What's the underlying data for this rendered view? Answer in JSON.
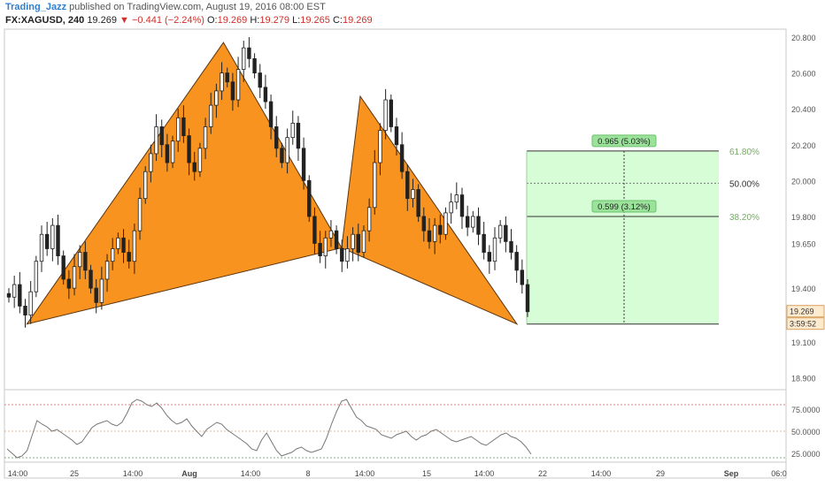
{
  "header": {
    "author": "Trading_Jazz",
    "published": "published on TradingView.com, August 19, 2016 08:00 EST",
    "symbol": "FX:XAGUSD, 240",
    "last": "19.269",
    "change": "−0.441 (−2.24%)",
    "o_label": "O:",
    "o_value": "19.269",
    "h_label": "H:",
    "h_value": "19.279",
    "l_label": "L:",
    "l_value": "19.265",
    "c_label": "C:",
    "c_value": "19.269"
  },
  "colors": {
    "pattern_fill": "#f7931e",
    "pattern_stroke": "#5a3510",
    "target_zone": "#d6fdd6",
    "label_box": "#9be39b",
    "up_candle": "#ffffff",
    "down_candle": "#222222",
    "oscillator_line": "#777777",
    "price_tag": "#fdebd0",
    "level_label": "#7aa86a"
  },
  "chart_data": [
    {
      "type": "line",
      "title": "",
      "ylim": [
        18.88,
        20.85
      ],
      "price_axis": [
        "20.800",
        "20.600",
        "20.400",
        "20.200",
        "20.000",
        "19.800",
        "19.650",
        "19.400",
        "19.100",
        "18.900"
      ],
      "price_axis_values": [
        20.8,
        20.6,
        20.4,
        20.2,
        20.0,
        19.8,
        19.65,
        19.4,
        19.1,
        18.9
      ],
      "time_axis": [
        "14:00",
        "25",
        "14:00",
        "Aug",
        "14:00",
        "8",
        "14:00",
        "15",
        "14:00",
        "22",
        "14:00",
        "29",
        "Sep",
        "06:0"
      ],
      "last_price_tag": "19.269",
      "countdown_tag": "3:59:52",
      "price_series": [
        19.35,
        19.42,
        19.3,
        19.25,
        19.38,
        19.55,
        19.7,
        19.62,
        19.75,
        19.58,
        19.45,
        19.4,
        19.52,
        19.6,
        19.5,
        19.4,
        19.32,
        19.45,
        19.55,
        19.62,
        19.68,
        19.6,
        19.55,
        19.72,
        19.9,
        20.05,
        20.15,
        20.3,
        20.2,
        20.1,
        20.22,
        20.35,
        20.25,
        20.1,
        20.05,
        20.18,
        20.3,
        20.42,
        20.5,
        20.6,
        20.55,
        20.45,
        20.62,
        20.74,
        20.68,
        20.6,
        20.52,
        20.44,
        20.3,
        20.18,
        20.1,
        20.24,
        20.32,
        20.18,
        20.0,
        19.8,
        19.65,
        19.58,
        19.68,
        19.72,
        19.62,
        19.55,
        19.62,
        19.7,
        19.6,
        19.72,
        19.85,
        20.1,
        20.28,
        20.45,
        20.3,
        20.2,
        20.05,
        19.9,
        19.95,
        19.8,
        19.72,
        19.66,
        19.75,
        19.7,
        19.82,
        19.88,
        19.92,
        19.8,
        19.74,
        19.8,
        19.7,
        19.6,
        19.55,
        19.68,
        19.75,
        19.66,
        19.6,
        19.5,
        19.42,
        19.269
      ],
      "harmonic_pattern": [
        {
          "x": "Jul 20",
          "y": 19.2
        },
        {
          "x": "Aug 3",
          "y": 20.77
        },
        {
          "x": "Aug 10",
          "y": 19.625
        },
        {
          "x": "Aug 11",
          "y": 20.47
        },
        {
          "x": "Aug 19",
          "y": 19.2
        }
      ],
      "target_projection": [
        {
          "label": "0.965 (5.03%)",
          "level": "61.80%",
          "price": 20.165
        },
        {
          "label": "",
          "level": "50.00%",
          "price": 19.985
        },
        {
          "label": "0.599 (3.12%)",
          "level": "38.20%",
          "price": 19.8
        }
      ],
      "target_base": 19.2
    },
    {
      "type": "line",
      "title": "",
      "ylim": [
        15,
        90
      ],
      "axis": [
        "75.0000",
        "50.0000",
        "25.0000"
      ],
      "axis_values": [
        75,
        50,
        25
      ],
      "levels": [
        80,
        50,
        20
      ],
      "values": [
        30,
        25,
        20,
        22,
        28,
        45,
        62,
        58,
        55,
        50,
        52,
        48,
        44,
        40,
        35,
        38,
        46,
        54,
        58,
        60,
        62,
        58,
        56,
        60,
        70,
        82,
        86,
        84,
        80,
        78,
        82,
        76,
        68,
        62,
        58,
        60,
        64,
        56,
        50,
        44,
        52,
        56,
        60,
        58,
        52,
        48,
        44,
        40,
        36,
        30,
        28,
        40,
        48,
        38,
        28,
        22,
        24,
        26,
        30,
        32,
        28,
        26,
        28,
        30,
        42,
        58,
        72,
        84,
        86,
        76,
        66,
        62,
        56,
        54,
        52,
        46,
        44,
        42,
        46,
        48,
        50,
        44,
        40,
        44,
        46,
        50,
        52,
        48,
        44,
        40,
        38,
        40,
        42,
        44,
        40,
        36,
        34,
        38,
        42,
        46,
        48,
        44,
        42,
        38,
        32,
        24
      ]
    }
  ]
}
